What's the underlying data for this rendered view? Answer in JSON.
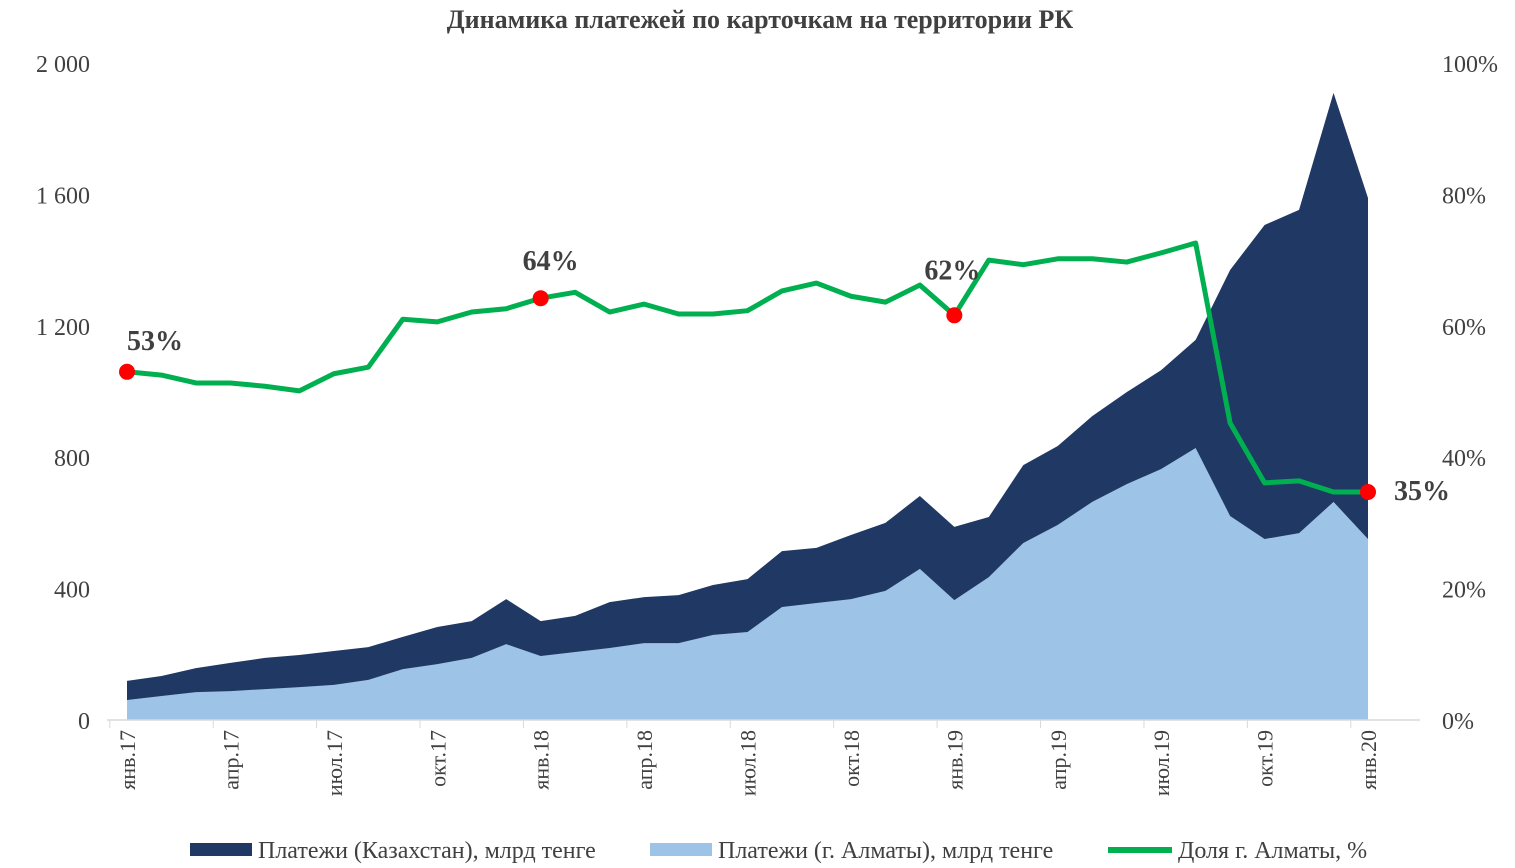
{
  "chart_data": {
    "type": "area",
    "title": "Динамика платежей по карточкам на территории РК",
    "xlabel": "",
    "ylabel": "",
    "ylim": [
      0,
      2000
    ],
    "y2lim": [
      0,
      100
    ],
    "grid": false,
    "legend_position": "bottom",
    "y_ticks": [
      "0",
      "400",
      "800",
      "1 200",
      "1 600",
      "2 000"
    ],
    "y_tick_values": [
      0,
      400,
      800,
      1200,
      1600,
      2000
    ],
    "y2_ticks": [
      "0%",
      "20%",
      "40%",
      "60%",
      "80%",
      "100%"
    ],
    "y2_tick_values": [
      0,
      20,
      40,
      60,
      80,
      100
    ],
    "x_tick_labels": [
      "янв.17",
      "апр.17",
      "июл.17",
      "окт.17",
      "янв.18",
      "апр.18",
      "июл.18",
      "окт.18",
      "янв.19",
      "апр.19",
      "июл.19",
      "окт.19",
      "янв.20"
    ],
    "x_tick_every": 3,
    "months": 37,
    "colors": {
      "kazakhstan": "#203864",
      "almaty": "#9dc3e6",
      "share": "#00b050",
      "marker": "#ff0000"
    },
    "series": [
      {
        "name": "Платежи (Казахстан), млрд тенге",
        "type": "area",
        "axis": "left",
        "values": [
          119,
          134,
          158,
          174,
          189,
          198,
          210,
          222,
          253,
          283,
          301,
          368,
          301,
          317,
          359,
          374,
          380,
          411,
          429,
          514,
          524,
          563,
          600,
          682,
          588,
          618,
          776,
          834,
          925,
          998,
          1065,
          1157,
          1370,
          1507,
          1553,
          1909,
          1589
        ]
      },
      {
        "name": "Платежи (г. Алматы), млрд тенге",
        "type": "area",
        "axis": "left",
        "values": [
          61,
          73,
          85,
          88,
          94,
          100,
          107,
          122,
          155,
          170,
          189,
          231,
          195,
          207,
          219,
          234,
          234,
          259,
          268,
          344,
          356,
          368,
          393,
          460,
          365,
          435,
          539,
          594,
          664,
          718,
          764,
          828,
          621,
          551,
          569,
          664,
          551
        ]
      },
      {
        "name": "Доля г. Алматы, %",
        "type": "line",
        "axis": "right",
        "values": [
          53,
          52.5,
          51.3,
          51.3,
          50.8,
          50.1,
          52.7,
          53.7,
          61,
          60.6,
          62.1,
          62.6,
          64.2,
          65.1,
          62.1,
          63.3,
          61.8,
          61.8,
          62.3,
          65.3,
          66.5,
          64.5,
          63.6,
          66.2,
          61.6,
          70,
          69.3,
          70.2,
          70.2,
          69.7,
          71.1,
          72.6,
          45.2,
          36.1,
          36.4,
          34.7,
          34.7
        ]
      }
    ],
    "annotations": [
      {
        "index": 0,
        "label": "53%"
      },
      {
        "index": 12,
        "label": "64%"
      },
      {
        "index": 24,
        "label": "62%"
      },
      {
        "index": 36,
        "label": "35%"
      }
    ]
  }
}
